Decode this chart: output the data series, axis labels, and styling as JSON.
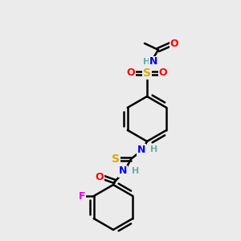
{
  "background_color": "#ebebeb",
  "atoms": {
    "colors": {
      "C": "#000000",
      "N": "#0000ee",
      "O": "#ff0000",
      "S_sulfone": "#ddaa00",
      "S_thio": "#ddaa00",
      "F": "#ee00ee",
      "H": "#6aacac"
    }
  },
  "figsize": [
    3.0,
    3.0
  ],
  "dpi": 100
}
